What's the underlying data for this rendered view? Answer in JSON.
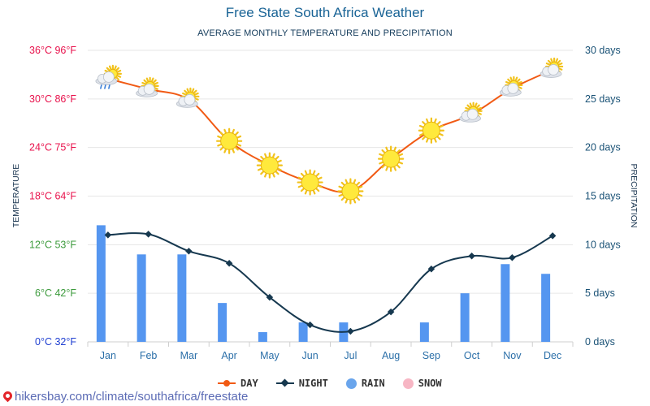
{
  "header": {
    "title": "Free State South Africa Weather",
    "subtitle": "AVERAGE MONTHLY TEMPERATURE AND PRECIPITATION"
  },
  "chart_data": {
    "type": "line",
    "title": "Free State South Africa Weather",
    "subtitle": "AVERAGE MONTHLY TEMPERATURE AND PRECIPITATION",
    "categories": [
      "Jan",
      "Feb",
      "Mar",
      "Apr",
      "May",
      "Jun",
      "Jul",
      "Aug",
      "Sep",
      "Oct",
      "Nov",
      "Dec"
    ],
    "ylabel_left": "TEMPERATURE",
    "ylabel_right": "PRECIPITATION",
    "ylim_left": [
      0,
      36
    ],
    "ylim_right": [
      0,
      30
    ],
    "left_ticks": [
      {
        "value": 0,
        "label": "0°C 32°F",
        "color": "#1f3fd1"
      },
      {
        "value": 6,
        "label": "6°C 42°F",
        "color": "#3d9b3d"
      },
      {
        "value": 12,
        "label": "12°C 53°F",
        "color": "#3d9b3d"
      },
      {
        "value": 18,
        "label": "18°C 64°F",
        "color": "#e8124c"
      },
      {
        "value": 24,
        "label": "24°C 75°F",
        "color": "#e8124c"
      },
      {
        "value": 30,
        "label": "30°C 86°F",
        "color": "#e8124c"
      },
      {
        "value": 36,
        "label": "36°C 96°F",
        "color": "#e8124c"
      }
    ],
    "right_ticks": [
      {
        "value": 0,
        "label": "0 days"
      },
      {
        "value": 5,
        "label": "5 days"
      },
      {
        "value": 10,
        "label": "10 days"
      },
      {
        "value": 15,
        "label": "15 days"
      },
      {
        "value": 20,
        "label": "20 days"
      },
      {
        "value": 25,
        "label": "25 days"
      },
      {
        "value": 30,
        "label": "30 days"
      }
    ],
    "series": [
      {
        "name": "DAY",
        "kind": "line",
        "axis": "left",
        "color": "#f15a14",
        "values": [
          32.5,
          31.2,
          29.9,
          24.8,
          21.8,
          19.7,
          18.6,
          22.6,
          26.1,
          28.1,
          31.3,
          33.6
        ]
      },
      {
        "name": "NIGHT",
        "kind": "line",
        "axis": "left",
        "color": "#16384f",
        "values": [
          13.2,
          13.3,
          11.2,
          9.7,
          5.5,
          2.1,
          1.3,
          3.7,
          9.0,
          10.6,
          10.4,
          13.1
        ]
      },
      {
        "name": "RAIN",
        "kind": "bar",
        "axis": "right",
        "color": "#5596f0",
        "values": [
          12,
          9,
          9,
          4,
          1,
          2,
          2,
          0,
          2,
          5,
          8,
          7
        ]
      },
      {
        "name": "SNOW",
        "kind": "bar",
        "axis": "right",
        "color": "#f7b6c4",
        "values": [
          0,
          0,
          0,
          0,
          0,
          0,
          0,
          0,
          0,
          0,
          0,
          0
        ]
      }
    ],
    "weather_icons": [
      "cloud-sun-rain-icon",
      "cloud-sun-icon",
      "cloud-sun-icon",
      "sun-icon",
      "sun-icon",
      "sun-icon",
      "sun-icon",
      "sun-icon",
      "sun-icon",
      "cloud-sun-icon",
      "cloud-sun-icon",
      "cloud-sun-icon"
    ],
    "grid": true,
    "legend_position": "bottom"
  },
  "legend": {
    "day": "DAY",
    "night": "NIGHT",
    "rain": "RAIN",
    "snow": "SNOW"
  },
  "colors": {
    "day": "#f15a14",
    "night": "#16384f",
    "rain": "#5596f0",
    "snow": "#f7b6c4",
    "right_axis": "#1a5276",
    "month_labels": "#2b6fa8"
  },
  "footer": {
    "url": "hikersbay.com/climate/southafrica/freestate"
  }
}
